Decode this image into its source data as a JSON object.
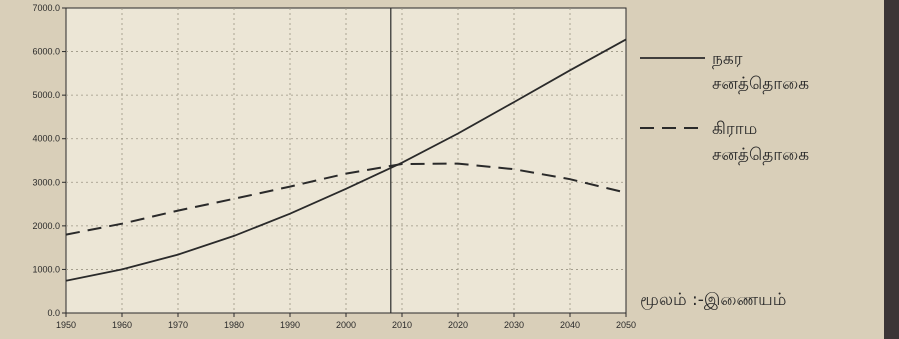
{
  "chart_data": {
    "type": "line",
    "x": [
      1950,
      1960,
      1970,
      1980,
      1990,
      2000,
      2010,
      2020,
      2030,
      2040,
      2050
    ],
    "xticks": [
      "1950",
      "1960",
      "1970",
      "1980",
      "1990",
      "2000",
      "2010",
      "2020",
      "2030",
      "2040",
      "2050"
    ],
    "yticks": [
      "0.0",
      "1000.0",
      "2000.0",
      "3000.0",
      "4000.0",
      "5000.0",
      "6000.0",
      "7000.0"
    ],
    "xlim": [
      1950,
      2050
    ],
    "ylim": [
      0,
      7000
    ],
    "grid": true,
    "vertical_marker_x": 2008,
    "series": [
      {
        "name": "நகர சனத்தொகை",
        "line_style": "solid",
        "values": [
          740,
          1000,
          1340,
          1770,
          2280,
          2850,
          3450,
          4120,
          4840,
          5570,
          6280
        ]
      },
      {
        "name": "கிராம சனத்தொகை",
        "line_style": "dashed",
        "values": [
          1800,
          2050,
          2350,
          2620,
          2900,
          3200,
          3420,
          3430,
          3300,
          3070,
          2760
        ]
      }
    ],
    "legend": {
      "position": "right",
      "entries": [
        {
          "line1": "நகர",
          "line2": "சனத்தொகை"
        },
        {
          "line1": "கிராம",
          "line2": "சனத்தொகை"
        }
      ]
    },
    "annotation": "மூலம் :-இணையம்"
  },
  "colors": {
    "background": "#d9cfb9",
    "plot_background": "#ece6d6",
    "line": "#2a2a2a",
    "grid": "#9a9483",
    "border_strip": "#3b3536"
  }
}
